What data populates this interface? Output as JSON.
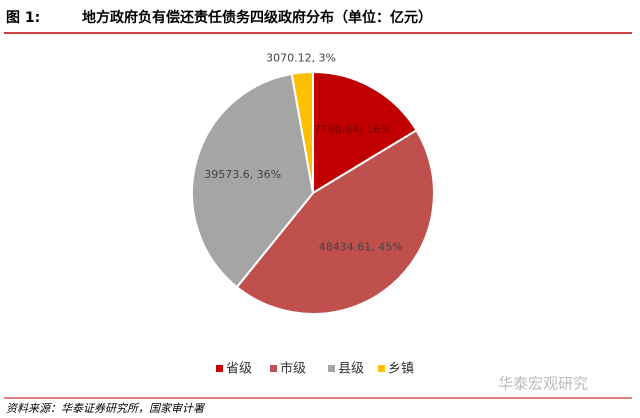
{
  "figure_label": "图 1:",
  "chart_data": {
    "type": "pie",
    "title": "地方政府负有偿还责任债务四级政府分布（单位：亿元）",
    "categories": [
      "省级",
      "市级",
      "县级",
      "乡镇"
    ],
    "values": [
      17780.84,
      48434.61,
      39573.6,
      3070.12
    ],
    "value_labels": [
      "17780.84, 16%",
      "48434.61, 45%",
      "39573.6, 36%",
      "3070.12, 3%"
    ],
    "colors": [
      "#c00000",
      "#c0504d",
      "#a5a5a5",
      "#ffc000"
    ],
    "legend": "bottom"
  },
  "source": "资料来源：华泰证券研究所，国家审计署",
  "watermark": "华泰宏观研究"
}
